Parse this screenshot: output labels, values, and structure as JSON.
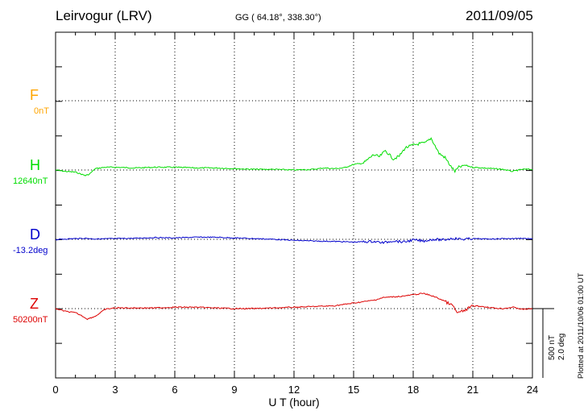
{
  "header": {
    "station": "Leirvogur (LRV)",
    "coords": "GG ( 64.18°, 338.30°)",
    "date": "2011/09/05"
  },
  "footer": {
    "plotted_note": "Plotted at 2011/10/06 01:00 UT",
    "scale_nt": "500 nT",
    "scale_deg": "2.0 deg"
  },
  "colors": {
    "F": "#ffa500",
    "H": "#00dd00",
    "D": "#0000cc",
    "Z": "#dd0000"
  },
  "components": {
    "F": {
      "label": "F",
      "baseline": "0nT"
    },
    "H": {
      "label": "H",
      "baseline": "12640nT"
    },
    "D": {
      "label": "D",
      "baseline": "-13.2deg"
    },
    "Z": {
      "label": "Z",
      "baseline": "50200nT"
    }
  },
  "chart_data": {
    "type": "line",
    "title": "Leirvogur (LRV)",
    "xlabel": "U T (hour)",
    "xlim": [
      0,
      24
    ],
    "xticks": [
      "0",
      "3",
      "6",
      "9",
      "12",
      "15",
      "18",
      "21",
      "24"
    ],
    "grid": true,
    "scale_note": "500 nT / 2.0 deg",
    "series": [
      {
        "name": "H",
        "unit": "nT",
        "baseline": 12640,
        "x": [
          0,
          0.5,
          1.0,
          1.5,
          1.7,
          2.0,
          2.5,
          3,
          4,
          5,
          6,
          7,
          8,
          9,
          10,
          11,
          12,
          13,
          13.5,
          14,
          14.5,
          15,
          15.5,
          16,
          16.3,
          16.6,
          17,
          17.3,
          17.6,
          18,
          18.3,
          18.6,
          18.9,
          19.1,
          19.3,
          19.6,
          19.9,
          20.1,
          20.3,
          20.6,
          21,
          21.5,
          22,
          22.5,
          23,
          23.5,
          24
        ],
        "y": [
          0,
          -10,
          -15,
          -40,
          -30,
          10,
          20,
          20,
          15,
          20,
          20,
          15,
          15,
          10,
          5,
          5,
          0,
          5,
          15,
          10,
          15,
          40,
          50,
          110,
          95,
          140,
          80,
          100,
          160,
          180,
          190,
          195,
          230,
          175,
          120,
          90,
          25,
          -10,
          20,
          35,
          20,
          15,
          10,
          5,
          -10,
          5,
          5
        ]
      },
      {
        "name": "D",
        "unit": "deg",
        "baseline": -13.2,
        "x": [
          0,
          0.5,
          1.0,
          1.5,
          2,
          3,
          4,
          5,
          6,
          7,
          8,
          9,
          10,
          11,
          12,
          13,
          14,
          15,
          16,
          16.5,
          17,
          17.5,
          18,
          18.5,
          19,
          19.5,
          20,
          20.5,
          21,
          21.5,
          22,
          22.5,
          23,
          23.5,
          24
        ],
        "y": [
          -0.01,
          0.01,
          0.02,
          0.03,
          0.01,
          0.02,
          0.03,
          0.05,
          0.04,
          0.06,
          0.06,
          0.04,
          0.02,
          0.0,
          -0.03,
          -0.05,
          -0.06,
          -0.08,
          -0.06,
          -0.1,
          -0.04,
          -0.08,
          -0.02,
          -0.05,
          0.0,
          -0.02,
          0.03,
          0.0,
          0.02,
          0.01,
          0.01,
          0.02,
          0.02,
          0.03,
          0.01
        ]
      },
      {
        "name": "Z",
        "unit": "nT",
        "baseline": 50200,
        "x": [
          0,
          0.5,
          1.0,
          1.3,
          1.6,
          2.0,
          2.5,
          3,
          4,
          5,
          6,
          7,
          8,
          9,
          10,
          11,
          12,
          13,
          14,
          15,
          16,
          16.5,
          17,
          17.5,
          18,
          18.5,
          19,
          19.5,
          20,
          20.2,
          20.5,
          21,
          21.5,
          22,
          22.5,
          23,
          23.5,
          24
        ],
        "y": [
          0,
          -20,
          -30,
          -50,
          -75,
          -55,
          -5,
          5,
          5,
          5,
          10,
          10,
          5,
          0,
          0,
          5,
          10,
          15,
          20,
          40,
          60,
          80,
          85,
          90,
          100,
          110,
          90,
          60,
          20,
          -30,
          -20,
          20,
          15,
          5,
          0,
          10,
          -5,
          0
        ]
      }
    ]
  }
}
